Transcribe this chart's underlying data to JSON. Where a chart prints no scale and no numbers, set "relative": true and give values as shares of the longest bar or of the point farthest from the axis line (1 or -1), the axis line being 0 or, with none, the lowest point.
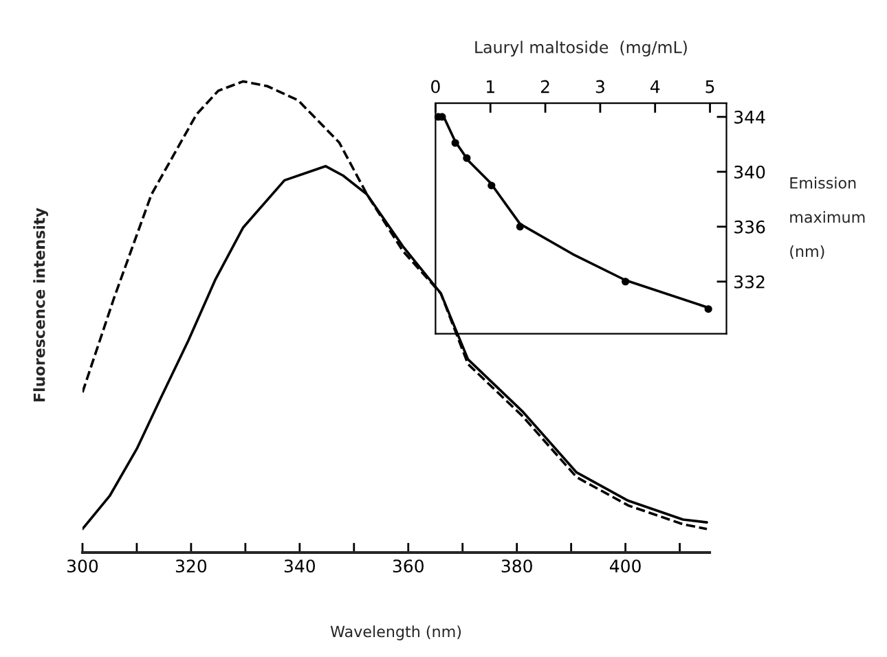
{
  "chart_data": [
    {
      "type": "line",
      "relative": true,
      "xlabel": "Wavelength (nm)",
      "ylabel": "Fluorescence intensity",
      "xlim": [
        300,
        415.5
      ],
      "xticks": [
        300,
        {
          "value": 310,
          "label": null
        },
        320,
        {
          "value": 330,
          "label": null
        },
        340,
        {
          "value": 350,
          "label": null
        },
        360,
        {
          "value": 370,
          "label": null
        },
        380,
        {
          "value": 390,
          "label": null
        },
        400,
        {
          "value": 410,
          "label": null
        }
      ],
      "series": [
        {
          "color": "#000000",
          "line_style": "dashed",
          "x": [
            300,
            305.8,
            312.7,
            321,
            325,
            329.6,
            334,
            339.7,
            347.3,
            352.4,
            359,
            366,
            371,
            381,
            391,
            400.5,
            410.6,
            415
          ],
          "values": [
            0.34,
            0.54,
            0.76,
            0.93,
            0.98,
            1.0,
            0.99,
            0.96,
            0.87,
            0.76,
            0.64,
            0.55,
            0.4,
            0.29,
            0.16,
            0.1,
            0.06,
            0.05
          ]
        },
        {
          "color": "#000000",
          "line_style": "solid",
          "x": [
            300,
            305,
            310,
            314.5,
            319.5,
            324.5,
            329.6,
            337.2,
            344.8,
            348,
            352.4,
            359,
            366,
            371,
            381,
            391,
            400.5,
            410.6,
            415
          ],
          "values": [
            0.05,
            0.12,
            0.22,
            0.33,
            0.45,
            0.58,
            0.69,
            0.79,
            0.82,
            0.8,
            0.76,
            0.65,
            0.55,
            0.41,
            0.3,
            0.17,
            0.11,
            0.07,
            0.064
          ]
        }
      ]
    },
    {
      "type": "scatter",
      "xlabel": "Lauryl maltoside  (mg/mL)",
      "ylabel": "Emission\n\nmaximum\n\n(nm)",
      "xlim": [
        0,
        5.3
      ],
      "ylim": [
        328.2,
        345
      ],
      "xticks": [
        0,
        1,
        2,
        3,
        4,
        5
      ],
      "yticks": [
        332,
        336,
        340,
        344
      ],
      "series": [
        {
          "color": "#000000",
          "marker": "circle",
          "x": [
            0.05,
            0.12,
            0.36,
            0.57,
            1.02,
            1.54,
            3.46,
            4.97
          ],
          "values": [
            344,
            344,
            342.1,
            341,
            339,
            336,
            332,
            330
          ]
        },
        {
          "type": "line",
          "color": "#000000",
          "marker": "none",
          "x": [
            0,
            0.15,
            0.36,
            0.6,
            1.0,
            1.54,
            2.5,
            3.46,
            4.97
          ],
          "values": [
            344,
            344,
            342.2,
            340.8,
            339.2,
            336.2,
            334,
            332.1,
            330.1
          ]
        }
      ]
    }
  ]
}
